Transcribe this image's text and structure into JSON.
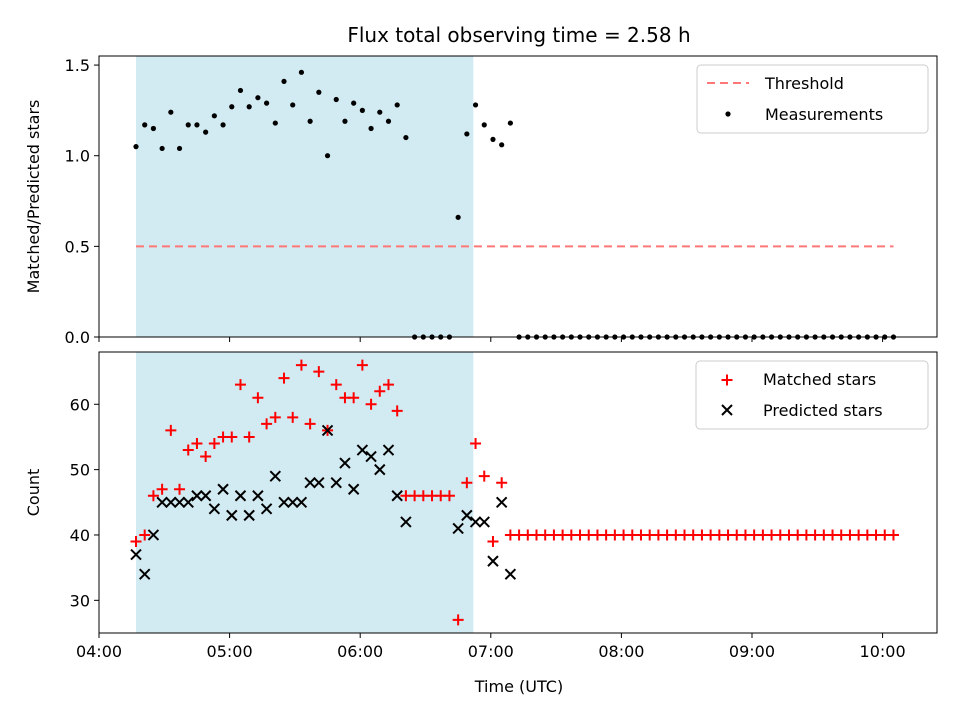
{
  "title": "Flux total observing time = 2.58 h",
  "xlabel": "Time (UTC)",
  "colors": {
    "threshold": "#ff7777",
    "measurement": "#000000",
    "matched": "#ff0000",
    "predicted": "#000000",
    "shade": "#add8e6"
  },
  "chart_data": [
    {
      "type": "scatter",
      "panel": "top",
      "ylabel": "Matched/Predicted stars",
      "ylim": [
        0,
        1.55
      ],
      "yticks": [
        0.0,
        0.5,
        1.0,
        1.5
      ],
      "ytick_labels": [
        "0.0",
        "0.5",
        "1.0",
        "1.5"
      ],
      "xlim": [
        "04:00",
        "10:25"
      ],
      "shaded_interval": [
        "04:17",
        "06:52"
      ],
      "legend": {
        "placement": "top-right",
        "entries": [
          "Threshold",
          "Measurements"
        ]
      },
      "threshold": {
        "name": "Threshold",
        "value": 0.5,
        "x_range": [
          "04:17",
          "10:05"
        ]
      },
      "series": [
        {
          "name": "Measurements",
          "marker": "dot",
          "x": [
            "04:17",
            "04:21",
            "04:25",
            "04:29",
            "04:33",
            "04:37",
            "04:41",
            "04:45",
            "04:49",
            "04:53",
            "04:57",
            "05:01",
            "05:05",
            "05:09",
            "05:13",
            "05:17",
            "05:21",
            "05:25",
            "05:29",
            "05:33",
            "05:37",
            "05:41",
            "05:45",
            "05:49",
            "05:53",
            "05:57",
            "06:01",
            "06:05",
            "06:09",
            "06:13",
            "06:17",
            "06:21",
            "06:25",
            "06:29",
            "06:33",
            "06:37",
            "06:41",
            "06:45",
            "06:49",
            "06:53",
            "06:57",
            "07:01",
            "07:05",
            "07:09",
            "07:13",
            "07:17",
            "07:21",
            "07:25",
            "07:29",
            "07:33",
            "07:37",
            "07:41",
            "07:45",
            "07:49",
            "07:53",
            "07:57",
            "08:01",
            "08:05",
            "08:09",
            "08:13",
            "08:17",
            "08:21",
            "08:25",
            "08:29",
            "08:33",
            "08:37",
            "08:41",
            "08:45",
            "08:49",
            "08:53",
            "08:57",
            "09:01",
            "09:05",
            "09:09",
            "09:13",
            "09:17",
            "09:21",
            "09:25",
            "09:29",
            "09:33",
            "09:37",
            "09:41",
            "09:45",
            "09:49",
            "09:53",
            "09:57",
            "10:01",
            "10:05"
          ],
          "y": [
            1.05,
            1.17,
            1.15,
            1.04,
            1.24,
            1.04,
            1.17,
            1.17,
            1.13,
            1.22,
            1.17,
            1.27,
            1.36,
            1.27,
            1.32,
            1.29,
            1.18,
            1.41,
            1.28,
            1.46,
            1.19,
            1.35,
            1.0,
            1.31,
            1.19,
            1.29,
            1.25,
            1.15,
            1.24,
            1.19,
            1.28,
            1.1,
            0.0,
            0.0,
            0.0,
            0.0,
            0.0,
            0.66,
            1.12,
            1.28,
            1.17,
            1.09,
            1.06,
            1.18,
            0.0,
            0.0,
            0.0,
            0.0,
            0.0,
            0.0,
            0.0,
            0.0,
            0.0,
            0.0,
            0.0,
            0.0,
            0.0,
            0.0,
            0.0,
            0.0,
            0.0,
            0.0,
            0.0,
            0.0,
            0.0,
            0.0,
            0.0,
            0.0,
            0.0,
            0.0,
            0.0,
            0.0,
            0.0,
            0.0,
            0.0,
            0.0,
            0.0,
            0.0,
            0.0,
            0.0,
            0.0,
            0.0,
            0.0,
            0.0,
            0.0,
            0.0,
            0.0,
            0.0
          ]
        }
      ]
    },
    {
      "type": "scatter",
      "panel": "bottom",
      "ylabel": "Count",
      "ylim": [
        25,
        68
      ],
      "yticks": [
        30,
        40,
        50,
        60
      ],
      "ytick_labels": [
        "30",
        "40",
        "50",
        "60"
      ],
      "xlim": [
        "04:00",
        "10:25"
      ],
      "xticks": [
        "04:00",
        "05:00",
        "06:00",
        "07:00",
        "08:00",
        "09:00",
        "10:00"
      ],
      "xtick_labels": [
        "04:00",
        "05:00",
        "06:00",
        "07:00",
        "08:00",
        "09:00",
        "10:00"
      ],
      "shaded_interval": [
        "04:17",
        "06:52"
      ],
      "legend": {
        "placement": "top-right",
        "entries": [
          "Matched stars",
          "Predicted stars"
        ]
      },
      "x": [
        "04:17",
        "04:21",
        "04:25",
        "04:29",
        "04:33",
        "04:37",
        "04:41",
        "04:45",
        "04:49",
        "04:53",
        "04:57",
        "05:01",
        "05:05",
        "05:09",
        "05:13",
        "05:17",
        "05:21",
        "05:25",
        "05:29",
        "05:33",
        "05:37",
        "05:41",
        "05:45",
        "05:49",
        "05:53",
        "05:57",
        "06:01",
        "06:05",
        "06:09",
        "06:13",
        "06:17",
        "06:21",
        "06:25",
        "06:29",
        "06:33",
        "06:37",
        "06:41",
        "06:45",
        "06:49",
        "06:53",
        "06:57",
        "07:01",
        "07:05",
        "07:09",
        "07:13",
        "07:17",
        "07:21",
        "07:25",
        "07:29",
        "07:33",
        "07:37",
        "07:41",
        "07:45",
        "07:49",
        "07:53",
        "07:57",
        "08:01",
        "08:05",
        "08:09",
        "08:13",
        "08:17",
        "08:21",
        "08:25",
        "08:29",
        "08:33",
        "08:37",
        "08:41",
        "08:45",
        "08:49",
        "08:53",
        "08:57",
        "09:01",
        "09:05",
        "09:09",
        "09:13",
        "09:17",
        "09:21",
        "09:25",
        "09:29",
        "09:33",
        "09:37",
        "09:41",
        "09:45",
        "09:49",
        "09:53",
        "09:57",
        "10:01",
        "10:05"
      ],
      "series": [
        {
          "name": "Matched stars",
          "marker": "plus",
          "y": [
            39,
            40,
            46,
            47,
            56,
            47,
            53,
            54,
            52,
            54,
            55,
            55,
            63,
            55,
            61,
            57,
            58,
            64,
            58,
            66,
            57,
            65,
            56,
            63,
            61,
            61,
            66,
            60,
            62,
            63,
            59,
            46,
            46,
            46,
            46,
            46,
            46,
            27,
            48,
            54,
            49,
            39,
            48,
            40,
            40,
            40,
            40,
            40,
            40,
            40,
            40,
            40,
            40,
            40,
            40,
            40,
            40,
            40,
            40,
            40,
            40,
            40,
            40,
            40,
            40,
            40,
            40,
            40,
            40,
            40,
            40,
            40,
            40,
            40,
            40,
            40,
            40,
            40,
            40,
            40,
            40,
            40,
            40,
            40,
            40,
            40,
            40,
            40
          ]
        },
        {
          "name": "Predicted stars",
          "marker": "x",
          "y": [
            37,
            34,
            40,
            45,
            45,
            45,
            45,
            46,
            46,
            44,
            47,
            43,
            46,
            43,
            46,
            44,
            49,
            45,
            45,
            45,
            48,
            48,
            56,
            48,
            51,
            47,
            53,
            52,
            50,
            53,
            46,
            42,
            null,
            null,
            null,
            null,
            null,
            41,
            43,
            42,
            42,
            36,
            45,
            34,
            null,
            null,
            null,
            null,
            null,
            null,
            null,
            null,
            null,
            null,
            null,
            null,
            null,
            null,
            null,
            null,
            null,
            null,
            null,
            null,
            null,
            null,
            null,
            null,
            null,
            null,
            null,
            null,
            null,
            null,
            null,
            null,
            null,
            null,
            null,
            null,
            null,
            null,
            null,
            null,
            null,
            null,
            null,
            null
          ]
        }
      ]
    }
  ]
}
